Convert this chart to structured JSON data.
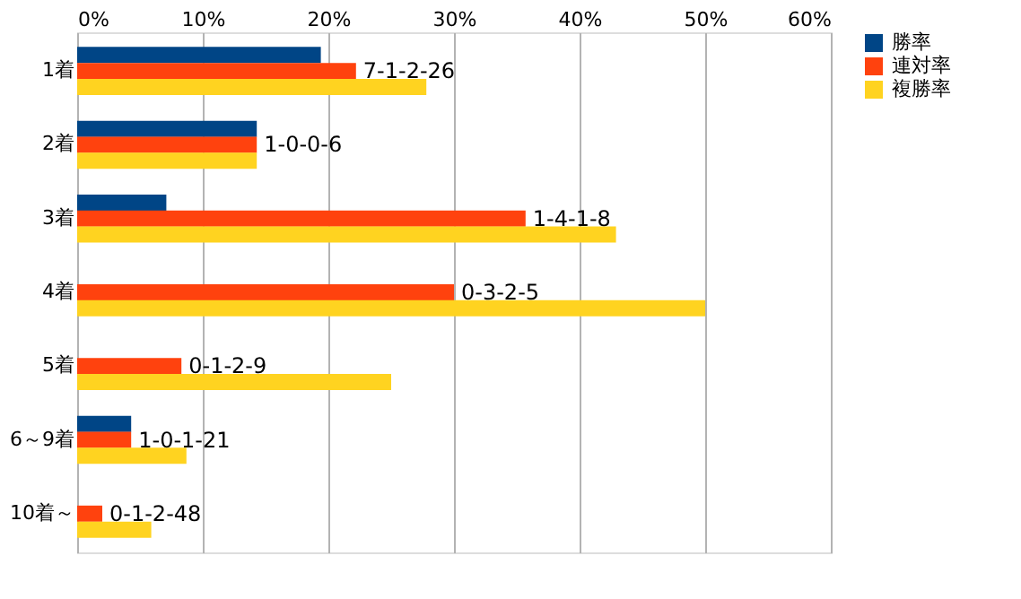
{
  "chart_data": {
    "type": "bar",
    "orientation": "horizontal",
    "categories": [
      "1着",
      "2着",
      "3着",
      "4着",
      "5着",
      "6～9着",
      "10着～"
    ],
    "series": [
      {
        "name": "勝率",
        "color": "#004586",
        "values": [
          19.4,
          14.3,
          7.1,
          0,
          0,
          4.3,
          0
        ]
      },
      {
        "name": "連対率",
        "color": "#ff420e",
        "values": [
          22.2,
          14.3,
          35.7,
          30,
          8.3,
          4.3,
          2.0
        ]
      },
      {
        "name": "複勝率",
        "color": "#ffd320",
        "values": [
          27.8,
          14.3,
          42.9,
          50,
          25,
          8.7,
          5.9
        ]
      }
    ],
    "xlim": [
      0,
      60
    ],
    "xticks": [
      {
        "value": 0,
        "label": "0%"
      },
      {
        "value": 10,
        "label": "10%"
      },
      {
        "value": 20,
        "label": "20%"
      },
      {
        "value": 30,
        "label": "30%"
      },
      {
        "value": 40,
        "label": "40%"
      },
      {
        "value": 50,
        "label": "50%"
      },
      {
        "value": 60,
        "label": "60%"
      }
    ],
    "grid": "x",
    "legend": "right",
    "annotations": [
      {
        "text": "7-1-2-26",
        "x": 22.2,
        "y": "1着"
      },
      {
        "text": "1-0-0-6",
        "x": 14.3,
        "y": "2着"
      },
      {
        "text": "1-4-1-8",
        "x": 35.7,
        "y": "3着"
      },
      {
        "text": "0-3-2-5",
        "x": 30,
        "y": "4着"
      },
      {
        "text": "0-1-2-9",
        "x": 8.3,
        "y": "5着"
      },
      {
        "text": "1-0-1-21",
        "x": 4.3,
        "y": "6～9着"
      },
      {
        "text": "0-1-2-48",
        "x": 2.0,
        "y": "10着～"
      }
    ]
  }
}
